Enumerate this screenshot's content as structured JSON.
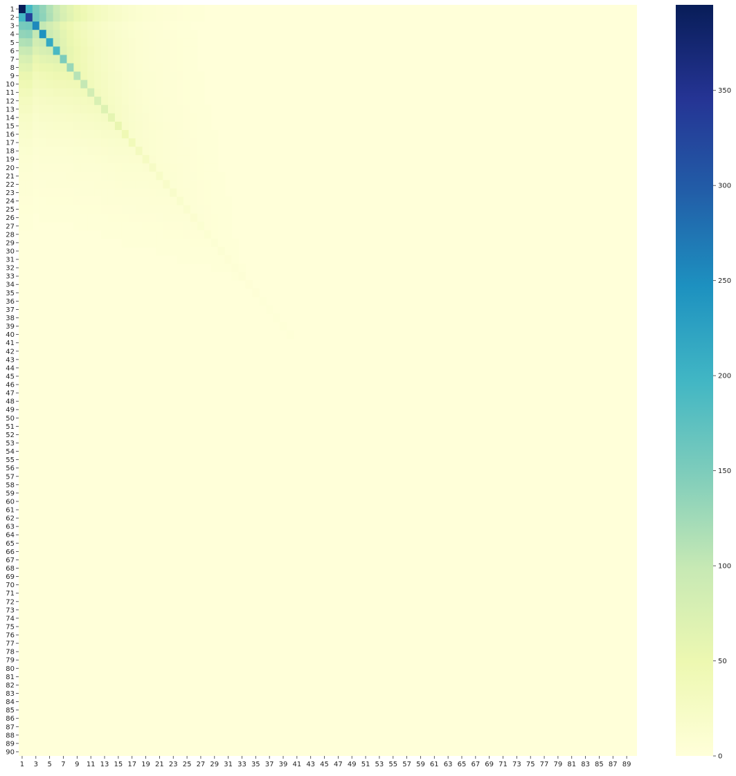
{
  "chart_data": {
    "type": "heatmap",
    "rows": 90,
    "cols": 90,
    "row_labels_start": 1,
    "col_labels_start": 1,
    "x_tick_labels": [
      "1",
      "3",
      "5",
      "7",
      "9",
      "11",
      "13",
      "15",
      "17",
      "19",
      "21",
      "23",
      "25",
      "27",
      "29",
      "31",
      "33",
      "35",
      "37",
      "39",
      "41",
      "43",
      "45",
      "47",
      "49",
      "51",
      "53",
      "55",
      "57",
      "59",
      "61",
      "63",
      "65",
      "67",
      "69",
      "71",
      "73",
      "75",
      "77",
      "79",
      "81",
      "83",
      "85",
      "87",
      "89"
    ],
    "y_tick_labels": [
      "1",
      "2",
      "3",
      "4",
      "5",
      "6",
      "7",
      "8",
      "9",
      "10",
      "11",
      "12",
      "13",
      "14",
      "15",
      "16",
      "17",
      "18",
      "19",
      "20",
      "21",
      "22",
      "23",
      "24",
      "25",
      "26",
      "27",
      "28",
      "29",
      "30",
      "31",
      "32",
      "33",
      "34",
      "35",
      "36",
      "37",
      "38",
      "39",
      "40",
      "41",
      "42",
      "43",
      "44",
      "45",
      "46",
      "47",
      "48",
      "49",
      "50",
      "51",
      "52",
      "53",
      "54",
      "55",
      "56",
      "57",
      "58",
      "59",
      "60",
      "61",
      "62",
      "63",
      "64",
      "65",
      "66",
      "67",
      "68",
      "69",
      "70",
      "71",
      "72",
      "73",
      "74",
      "75",
      "76",
      "77",
      "78",
      "79",
      "80",
      "81",
      "82",
      "83",
      "84",
      "85",
      "86",
      "87",
      "88",
      "89",
      "90"
    ],
    "diagonal_values": [
      395,
      330,
      255,
      245,
      215,
      190,
      150,
      130,
      110,
      100,
      85,
      75,
      70,
      60,
      55,
      45,
      38,
      32,
      28,
      25,
      22,
      20,
      18,
      16,
      14,
      12,
      10,
      9,
      8,
      7,
      6,
      5,
      5,
      4,
      4,
      3,
      3,
      3,
      2,
      2
    ],
    "vmin": 0,
    "vmax": 395,
    "colorbar": {
      "ticks": [
        0,
        50,
        100,
        150,
        200,
        250,
        300,
        350
      ],
      "tick_labels": [
        "0",
        "50",
        "100",
        "150",
        "200",
        "250",
        "300",
        "350"
      ],
      "colormap": "YlGnBu",
      "colors": [
        "#ffffd9",
        "#edf8b1",
        "#c7e9b4",
        "#7fcdbb",
        "#41b6c4",
        "#1d91c0",
        "#225ea8",
        "#253494",
        "#081d58"
      ]
    },
    "title": "",
    "xlabel": "",
    "ylabel": "",
    "grid": false,
    "legend": "colorbar-right"
  }
}
